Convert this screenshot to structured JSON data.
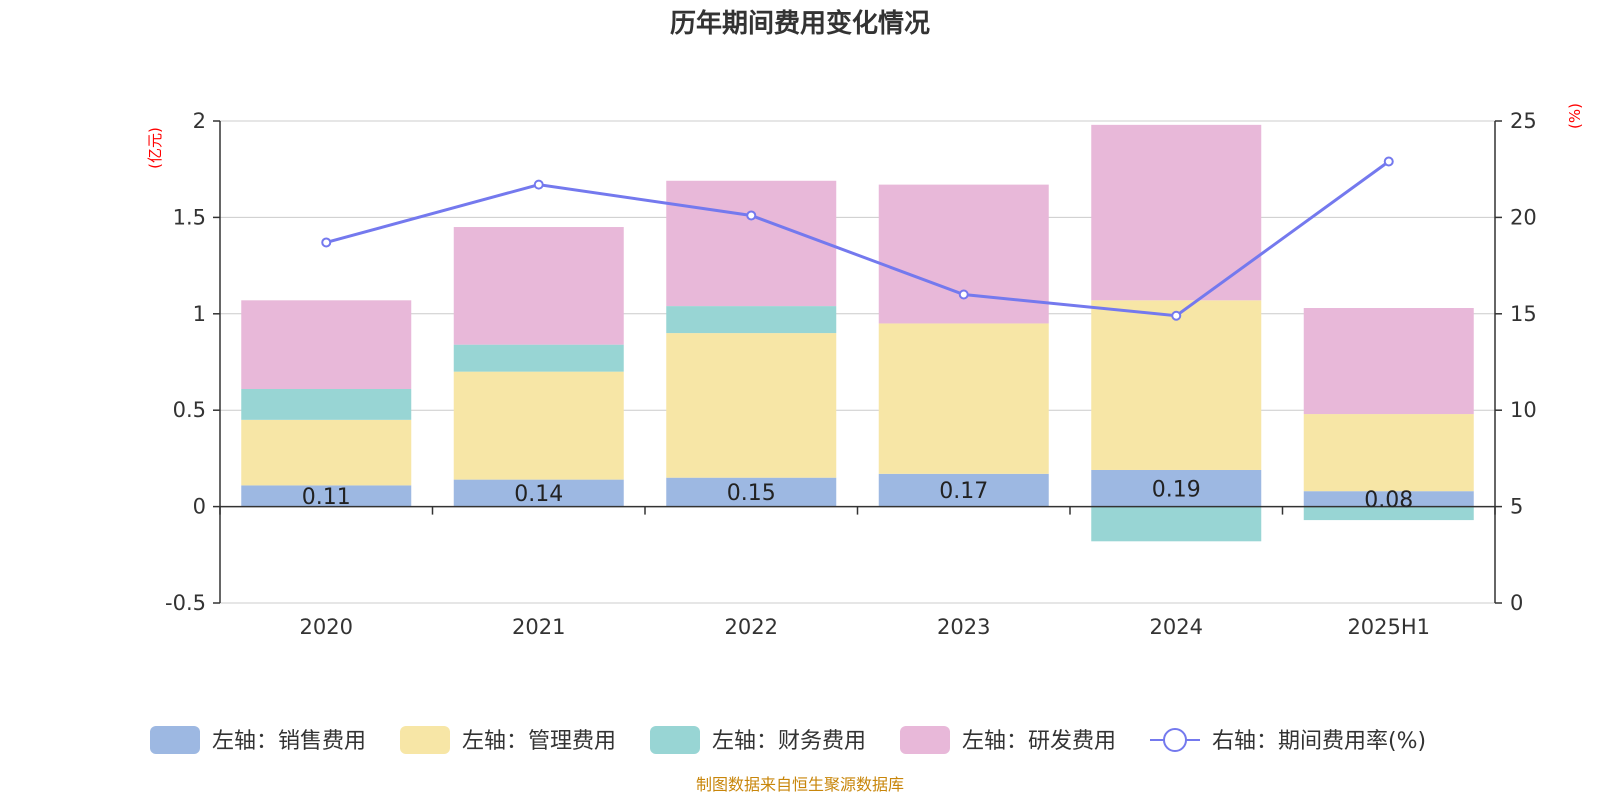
{
  "chart_data": {
    "type": "bar",
    "title": "历年期间费用变化情况",
    "categories": [
      "2020",
      "2021",
      "2022",
      "2023",
      "2024",
      "2025H1"
    ],
    "left_axis": {
      "unit": "(亿元)",
      "ylim": [
        -0.5,
        2
      ],
      "ticks": [
        "-0.5",
        "0",
        "0.5",
        "1",
        "1.5",
        "2"
      ]
    },
    "right_axis": {
      "unit": "(%)",
      "ylim": [
        0,
        25
      ],
      "ticks": [
        "0",
        "5",
        "10",
        "15",
        "20",
        "25"
      ]
    },
    "grid": true,
    "legend_position": "bottom",
    "series": [
      {
        "name": "左轴：销售费用",
        "type": "bar",
        "stack": true,
        "color": "#9db8e2",
        "values": [
          0.11,
          0.14,
          0.15,
          0.17,
          0.19,
          0.08
        ],
        "labels": [
          "0.11",
          "0.14",
          "0.15",
          "0.17",
          "0.19",
          "0.08"
        ]
      },
      {
        "name": "左轴：管理费用",
        "type": "bar",
        "stack": true,
        "color": "#f7e6a6",
        "values": [
          0.34,
          0.56,
          0.75,
          0.78,
          0.88,
          0.4
        ]
      },
      {
        "name": "左轴：财务费用",
        "type": "bar",
        "stack": true,
        "color": "#98d5d4",
        "values": [
          0.16,
          0.14,
          0.14,
          0.0,
          -0.18,
          -0.07
        ]
      },
      {
        "name": "左轴：研发费用",
        "type": "bar",
        "stack": true,
        "color": "#e8b8d9",
        "values": [
          0.46,
          0.61,
          0.65,
          0.72,
          0.91,
          0.55
        ]
      },
      {
        "name": "右轴：期间费用率(%)",
        "type": "line",
        "axis": "right",
        "color": "#7479ee",
        "values": [
          18.7,
          21.7,
          20.1,
          16.0,
          14.9,
          22.9
        ]
      }
    ]
  },
  "source": "制图数据来自恒生聚源数据库"
}
